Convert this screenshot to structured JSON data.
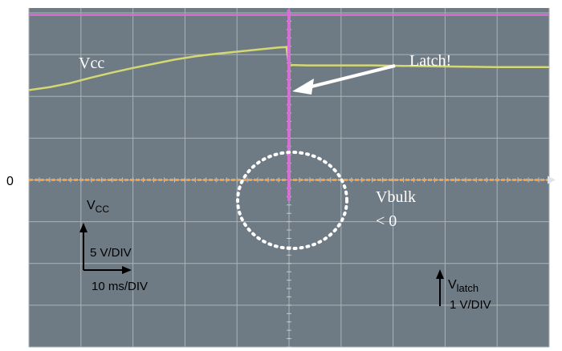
{
  "chart_data": {
    "type": "line",
    "x_div": 10,
    "y_div": 8,
    "time_per_div": "10 ms/DIV",
    "latch_time_div": 5,
    "series": [
      {
        "name": "Vcc",
        "color": "#d4d873",
        "x": [
          0,
          0.4,
          0.8,
          1.2,
          1.6,
          2.0,
          2.4,
          2.8,
          3.2,
          3.6,
          4.0,
          4.4,
          4.8,
          4.95,
          5.0,
          5.05,
          5.4,
          6.0,
          6.6,
          7.2,
          7.8,
          8.4,
          9.0,
          9.6,
          10.0
        ],
        "y": [
          6.15,
          6.22,
          6.32,
          6.45,
          6.57,
          6.68,
          6.78,
          6.88,
          6.96,
          7.02,
          7.07,
          7.12,
          7.17,
          7.18,
          6.72,
          6.75,
          6.74,
          6.74,
          6.74,
          6.73,
          6.72,
          6.71,
          6.7,
          6.7,
          6.7
        ]
      },
      {
        "name": "Vbulk",
        "color": "#f2a24a",
        "x": [
          0,
          10
        ],
        "y": [
          4.0,
          4.0
        ]
      },
      {
        "name": "Vlatch",
        "color": "#d86fd2",
        "x": [
          0,
          4.98,
          4.98,
          5.0,
          5.0,
          10
        ],
        "y": [
          7.95,
          7.95,
          8.05,
          8.05,
          7.95,
          7.95
        ],
        "spike_x": 5.0,
        "spike_y": [
          3.5,
          8.05
        ]
      }
    ],
    "annotations": {
      "zero_marker": "0",
      "vcc_label": "Vcc",
      "latch_label": "Latch!",
      "vbulk_label": "Vbulk",
      "vbulk_condition": "< 0",
      "vcc_scale_main": "V",
      "vcc_scale_sub": "CC",
      "vcc_scale": "5 V/DIV",
      "time_scale": "10 ms/DIV",
      "vlatch_main": "V",
      "vlatch_sub": "latch",
      "vlatch_scale": "1 V/DIV"
    },
    "grid": true
  }
}
